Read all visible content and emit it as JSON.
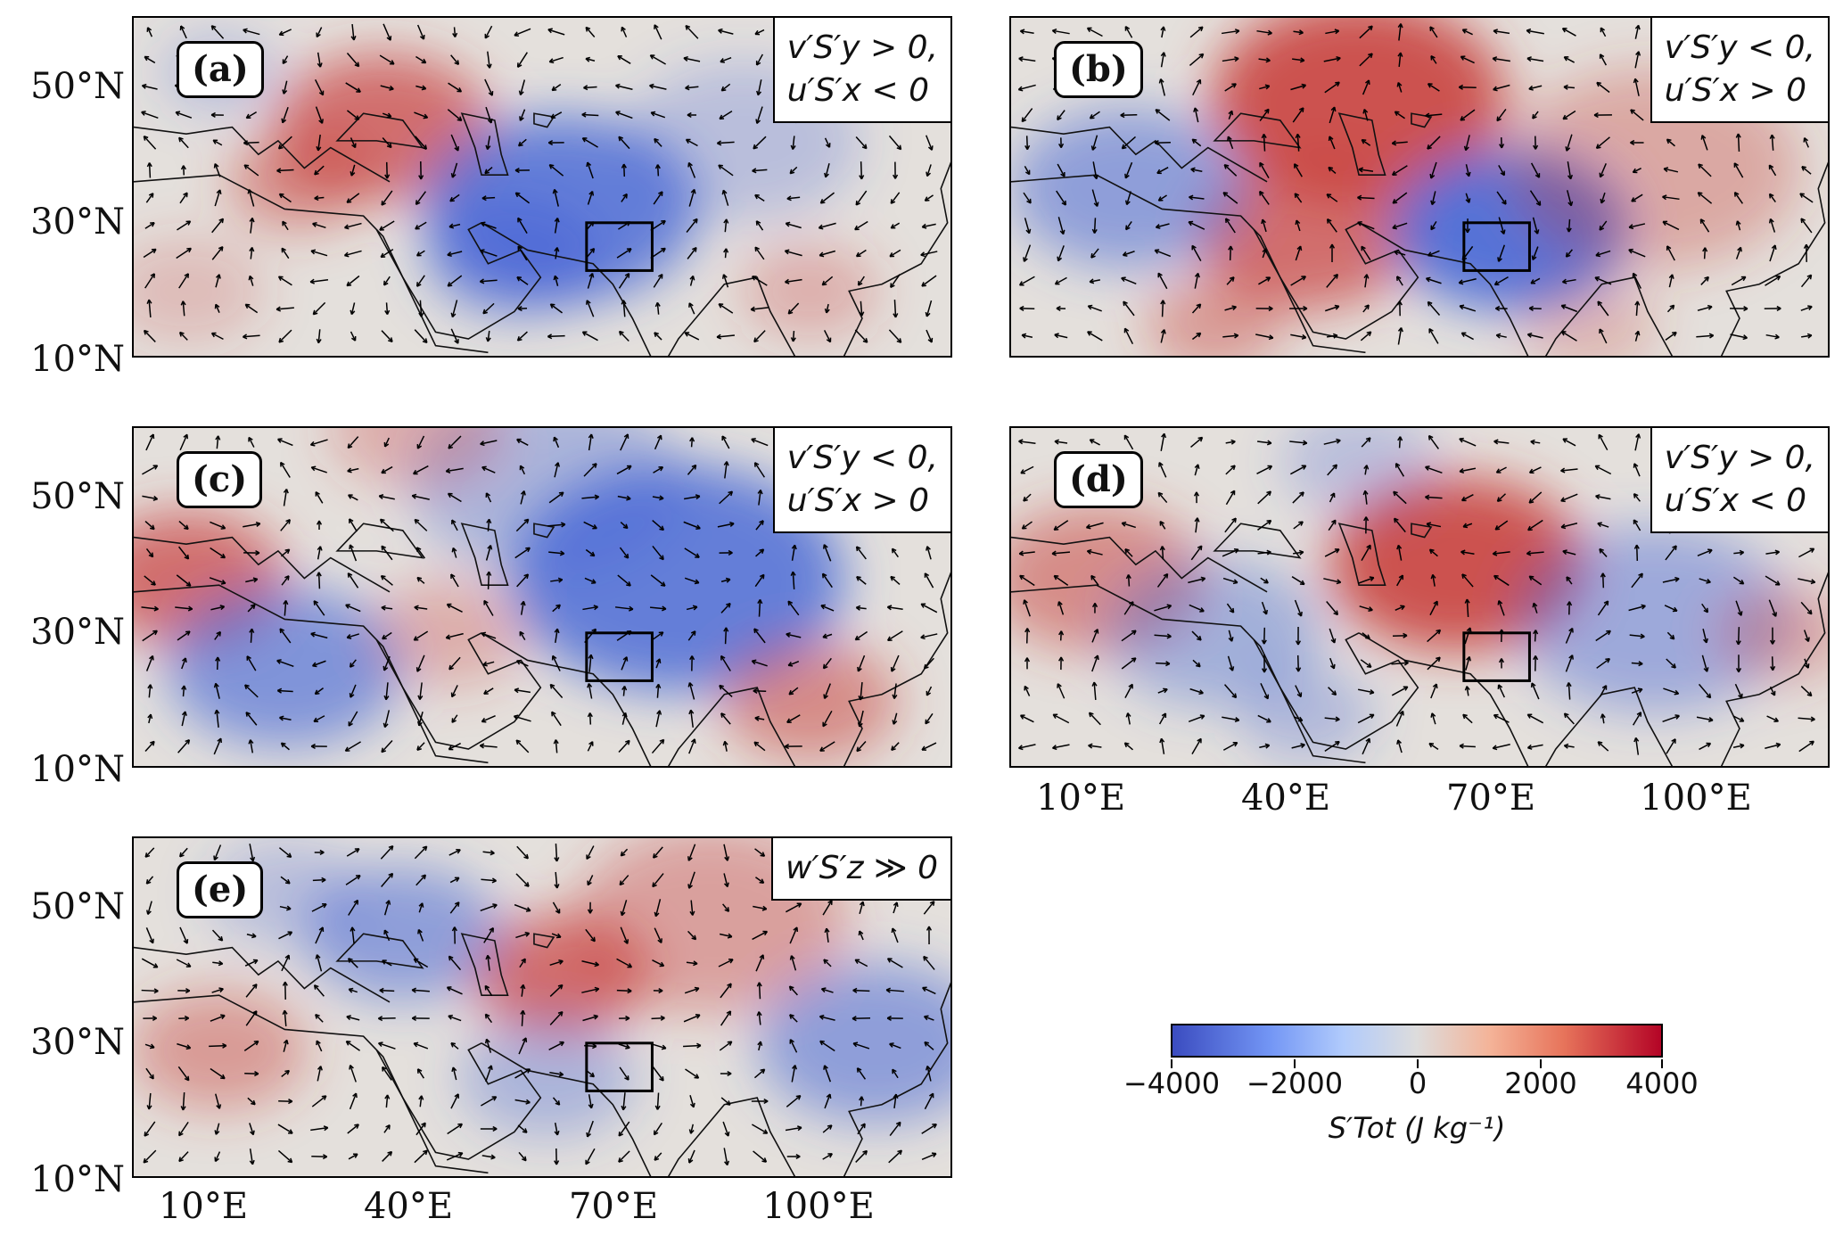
{
  "panels": [
    {
      "label": "(a)",
      "eq1": "v′S′y > 0,",
      "eq2": "u′S′x < 0",
      "pattern": "a"
    },
    {
      "label": "(b)",
      "eq1": "v′S′y < 0,",
      "eq2": "u′S′x > 0",
      "pattern": "b"
    },
    {
      "label": "(c)",
      "eq1": "v′S′y < 0,",
      "eq2": "u′S′x > 0",
      "pattern": "c"
    },
    {
      "label": "(d)",
      "eq1": "v′S′y > 0,",
      "eq2": "u′S′x < 0",
      "pattern": "d"
    },
    {
      "label": "(e)",
      "eq1": "w′S′z ≫ 0",
      "eq2": "",
      "pattern": "e"
    }
  ],
  "lat_labels": [
    "50°N",
    "30°N",
    "10°N"
  ],
  "lon_labels": [
    "10°E",
    "40°E",
    "70°E",
    "100°E"
  ],
  "colorbar": {
    "ticks": [
      "−4000",
      "−2000",
      "0",
      "2000",
      "4000"
    ],
    "label": "S′Tot (J kg⁻¹)",
    "range": [
      -4000,
      4000
    ],
    "colormap": "coolwarm",
    "colors": {
      "min": "#3b4cc0",
      "mid": "#dddcdc",
      "max": "#b40426"
    }
  }
}
